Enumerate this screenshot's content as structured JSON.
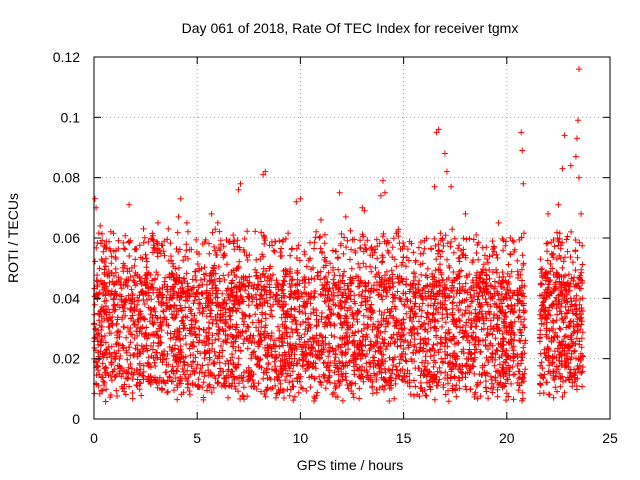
{
  "chart_data": {
    "type": "scatter",
    "title": "Day 061 of 2018, Rate Of TEC Index for receiver tgmx",
    "xlabel": "GPS time / hours",
    "ylabel": "ROTI / TECUs",
    "xlim": [
      0,
      25
    ],
    "ylim": [
      0,
      0.12
    ],
    "xticks": [
      "0",
      "5",
      "10",
      "15",
      "20",
      "25"
    ],
    "yticks": [
      "0",
      "0.02",
      "0.04",
      "0.06",
      "0.08",
      "0.1",
      "0.12"
    ],
    "grid": true,
    "marker": "+",
    "color": "#ff0000",
    "data_segments": [
      [
        0.0,
        20.4
      ],
      [
        20.5,
        20.9
      ],
      [
        21.6,
        23.7
      ]
    ],
    "data_gap": [
      20.9,
      21.6
    ],
    "typical_range": [
      0.005,
      0.05
    ],
    "series": [
      {
        "x": [
          0.05,
          0.1,
          0.3,
          0.5,
          1.7,
          2.4,
          3.1,
          3.6,
          4.1,
          4.2,
          4.5,
          5.7,
          6.0,
          7.0,
          7.1,
          8.2,
          8.3,
          9.8,
          10.0,
          11.0,
          11.9,
          12.2,
          13.0,
          13.1,
          13.9,
          14.0,
          14.1,
          16.5,
          16.6,
          16.7,
          17.0,
          17.1,
          17.3,
          18.0,
          19.6,
          20.7,
          20.75,
          20.8,
          22.0,
          22.5,
          22.7,
          22.8,
          23.1,
          23.35,
          23.4,
          23.45,
          23.5,
          23.5,
          23.6
        ],
        "y": [
          0.073,
          0.07,
          0.064,
          0.052,
          0.071,
          0.063,
          0.065,
          0.063,
          0.067,
          0.073,
          0.065,
          0.068,
          0.065,
          0.076,
          0.078,
          0.081,
          0.082,
          0.072,
          0.073,
          0.066,
          0.075,
          0.067,
          0.07,
          0.069,
          0.074,
          0.079,
          0.075,
          0.077,
          0.095,
          0.096,
          0.088,
          0.082,
          0.077,
          0.068,
          0.065,
          0.095,
          0.089,
          0.078,
          0.068,
          0.071,
          0.083,
          0.094,
          0.084,
          0.087,
          0.093,
          0.099,
          0.116,
          0.08,
          0.068
        ]
      }
    ]
  }
}
